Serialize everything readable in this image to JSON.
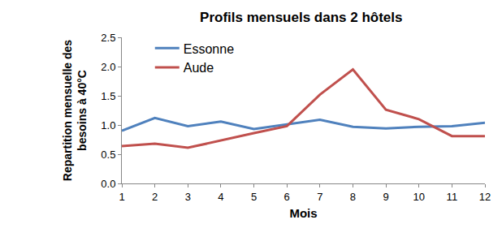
{
  "chart_data": {
    "type": "line",
    "title": "Profils mensuels dans 2 hôtels",
    "x_label": "Mois",
    "y_label": "Repartition mensuelle des besoins à 40°C",
    "x": [
      1,
      2,
      3,
      4,
      5,
      6,
      7,
      8,
      9,
      10,
      11,
      12
    ],
    "series": [
      {
        "name": "Essonne",
        "color": "#4f81bd",
        "values": [
          0.9,
          1.12,
          0.98,
          1.06,
          0.93,
          1.01,
          1.09,
          0.97,
          0.94,
          0.97,
          0.98,
          1.04
        ]
      },
      {
        "name": "Aude",
        "color": "#c0504d",
        "values": [
          0.64,
          0.68,
          0.61,
          0.74,
          0.86,
          0.98,
          1.52,
          1.95,
          1.26,
          1.1,
          0.81,
          0.81
        ]
      }
    ],
    "xlim": [
      1,
      12
    ],
    "xticks": [
      1,
      2,
      3,
      4,
      5,
      6,
      7,
      8,
      9,
      10,
      11,
      12
    ],
    "ylim": [
      0,
      2.5
    ],
    "yticks": [
      {
        "value": 0,
        "label": "0.0"
      },
      {
        "value": 0.5,
        "label": "0.5"
      },
      {
        "value": 1,
        "label": "1.0"
      },
      {
        "value": 1.5,
        "label": "1.5"
      },
      {
        "value": 2,
        "label": "2.0"
      },
      {
        "value": 2.5,
        "label": "2.5"
      }
    ],
    "grid": false,
    "legend": "top-left"
  }
}
